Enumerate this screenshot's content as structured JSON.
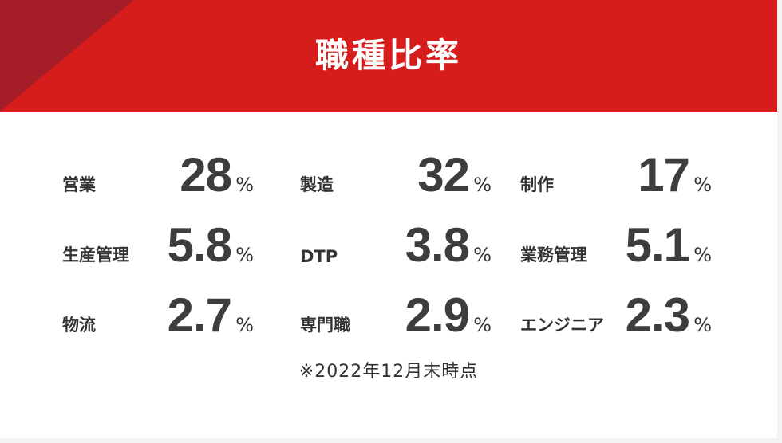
{
  "header": {
    "title": "職種比率"
  },
  "stats": [
    {
      "label": "営業",
      "value": "28",
      "unit": "%"
    },
    {
      "label": "製造",
      "value": "32",
      "unit": "%"
    },
    {
      "label": "制作",
      "value": "17",
      "unit": "%"
    },
    {
      "label": "生産管理",
      "value": "5.8",
      "unit": "%"
    },
    {
      "label": "DTP",
      "value": "3.8",
      "unit": "%"
    },
    {
      "label": "業務管理",
      "value": "5.1",
      "unit": "%"
    },
    {
      "label": "物流",
      "value": "2.7",
      "unit": "%"
    },
    {
      "label": "専門職",
      "value": "2.9",
      "unit": "%"
    },
    {
      "label": "エンジニア",
      "value": "2.3",
      "unit": "%"
    }
  ],
  "note": "※2022年12月末時点",
  "colors": {
    "header_red": "#d71c1c",
    "header_accent": "#a51e27",
    "text": "#333333"
  }
}
